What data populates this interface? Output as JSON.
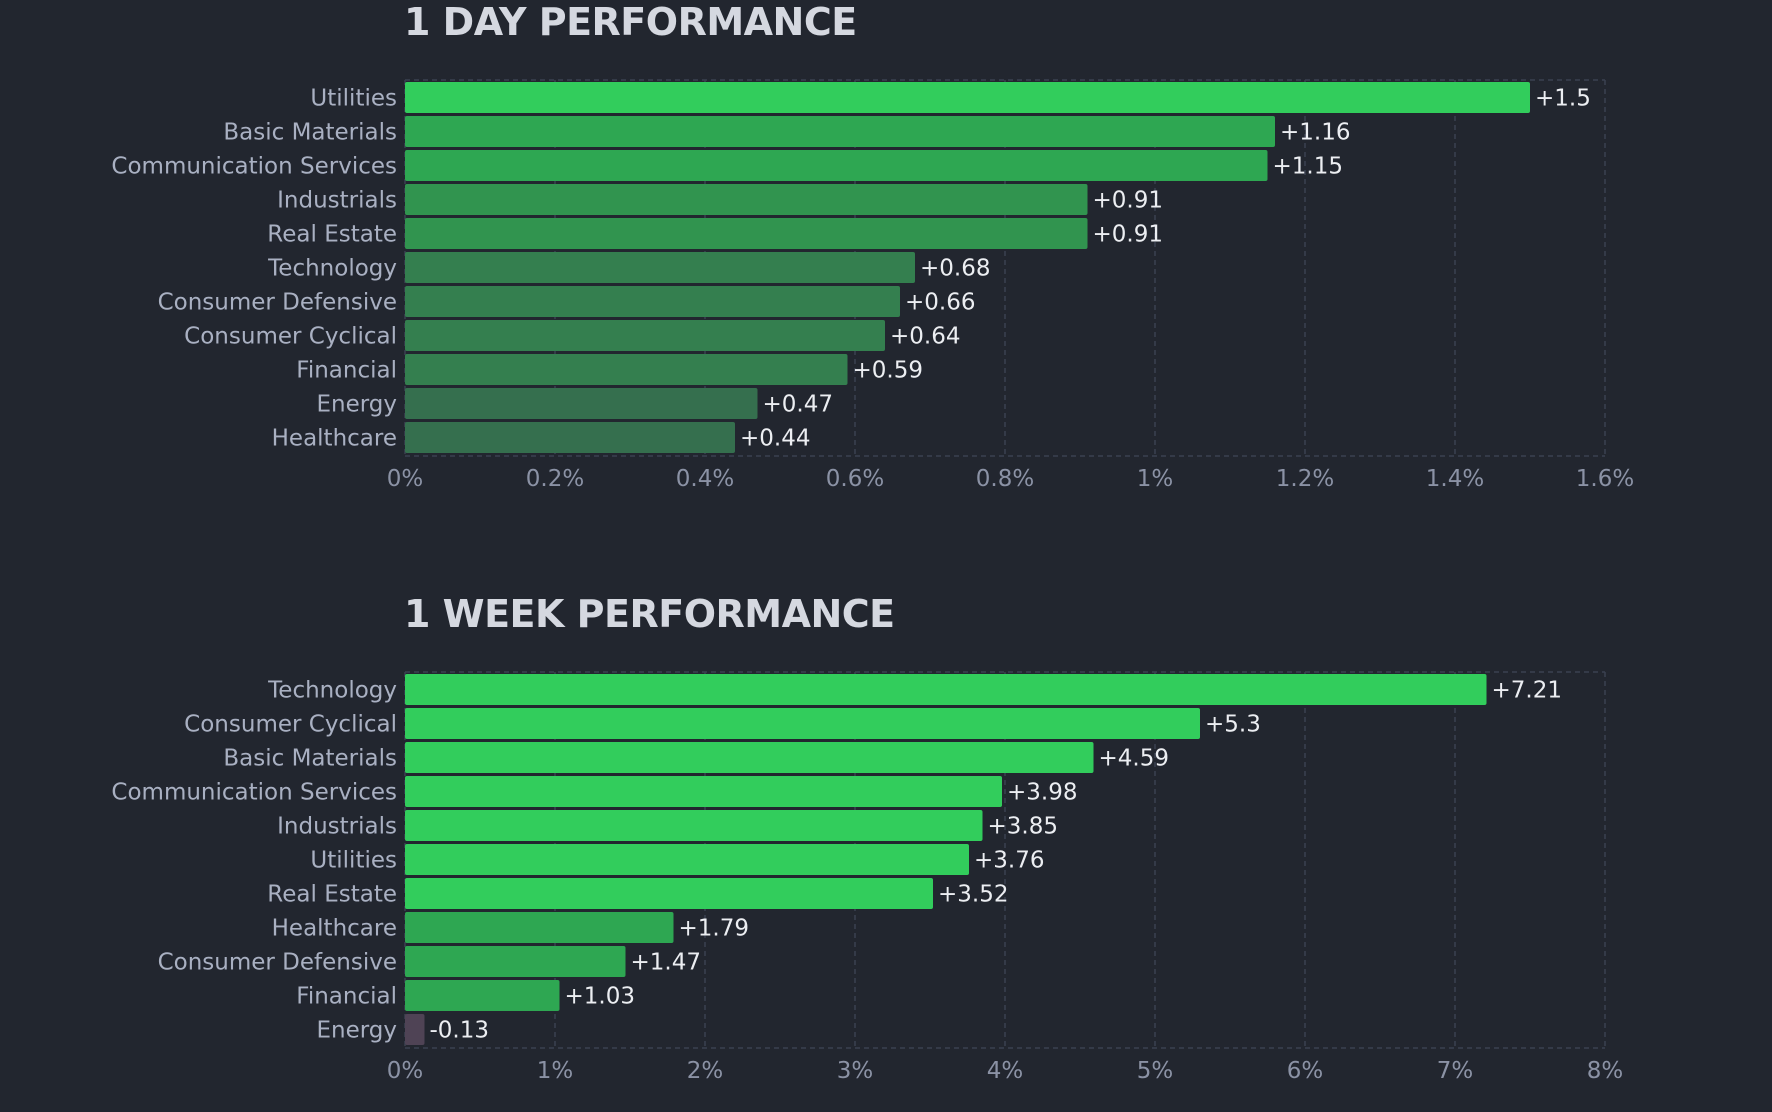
{
  "chart_data": [
    {
      "type": "bar",
      "orientation": "horizontal",
      "title": "1 DAY PERFORMANCE",
      "categories": [
        "Utilities",
        "Basic Materials",
        "Communication Services",
        "Industrials",
        "Real Estate",
        "Technology",
        "Consumer Defensive",
        "Consumer Cyclical",
        "Financial",
        "Energy",
        "Healthcare"
      ],
      "values": [
        1.5,
        1.16,
        1.15,
        0.91,
        0.91,
        0.68,
        0.66,
        0.64,
        0.59,
        0.47,
        0.44
      ],
      "value_labels": [
        "+1.5",
        "+1.16",
        "+1.15",
        "+0.91",
        "+0.91",
        "+0.68",
        "+0.66",
        "+0.64",
        "+0.59",
        "+0.47",
        "+0.44"
      ],
      "xlim": [
        0,
        1.6
      ],
      "xticks": [
        0,
        0.2,
        0.4,
        0.6,
        0.8,
        1,
        1.2,
        1.4,
        1.6
      ],
      "xtick_labels": [
        "0%",
        "0.2%",
        "0.4%",
        "0.6%",
        "0.8%",
        "1%",
        "1.2%",
        "1.4%",
        "1.6%"
      ],
      "xlabel": "",
      "ylabel": "",
      "grid": "vertical dashed",
      "legend": "none"
    },
    {
      "type": "bar",
      "orientation": "horizontal",
      "title": "1 WEEK PERFORMANCE",
      "categories": [
        "Technology",
        "Consumer Cyclical",
        "Basic Materials",
        "Communication Services",
        "Industrials",
        "Utilities",
        "Real Estate",
        "Healthcare",
        "Consumer Defensive",
        "Financial",
        "Energy"
      ],
      "values": [
        7.21,
        5.3,
        4.59,
        3.98,
        3.85,
        3.76,
        3.52,
        1.79,
        1.47,
        1.03,
        -0.13
      ],
      "value_labels": [
        "+7.21",
        "+5.3",
        "+4.59",
        "+3.98",
        "+3.85",
        "+3.76",
        "+3.52",
        "+1.79",
        "+1.47",
        "+1.03",
        "-0.13"
      ],
      "xlim": [
        0,
        8
      ],
      "xticks": [
        0,
        1,
        2,
        3,
        4,
        5,
        6,
        7,
        8
      ],
      "xtick_labels": [
        "0%",
        "1%",
        "2%",
        "3%",
        "4%",
        "5%",
        "6%",
        "7%",
        "8%"
      ],
      "xlabel": "",
      "ylabel": "",
      "grid": "vertical dashed",
      "legend": "none"
    }
  ],
  "colors": {
    "background": "#22262f",
    "title": "#d5d8e0",
    "category_label": "#a9b0c2",
    "value_label": "#eceef2",
    "tick_label": "#8b92a5",
    "grid": "#3a4050",
    "positive_strong": "#32cd5c",
    "positive_medium": "#2ea752",
    "positive_weak": "#356f4e",
    "negative": "#4f4355"
  }
}
